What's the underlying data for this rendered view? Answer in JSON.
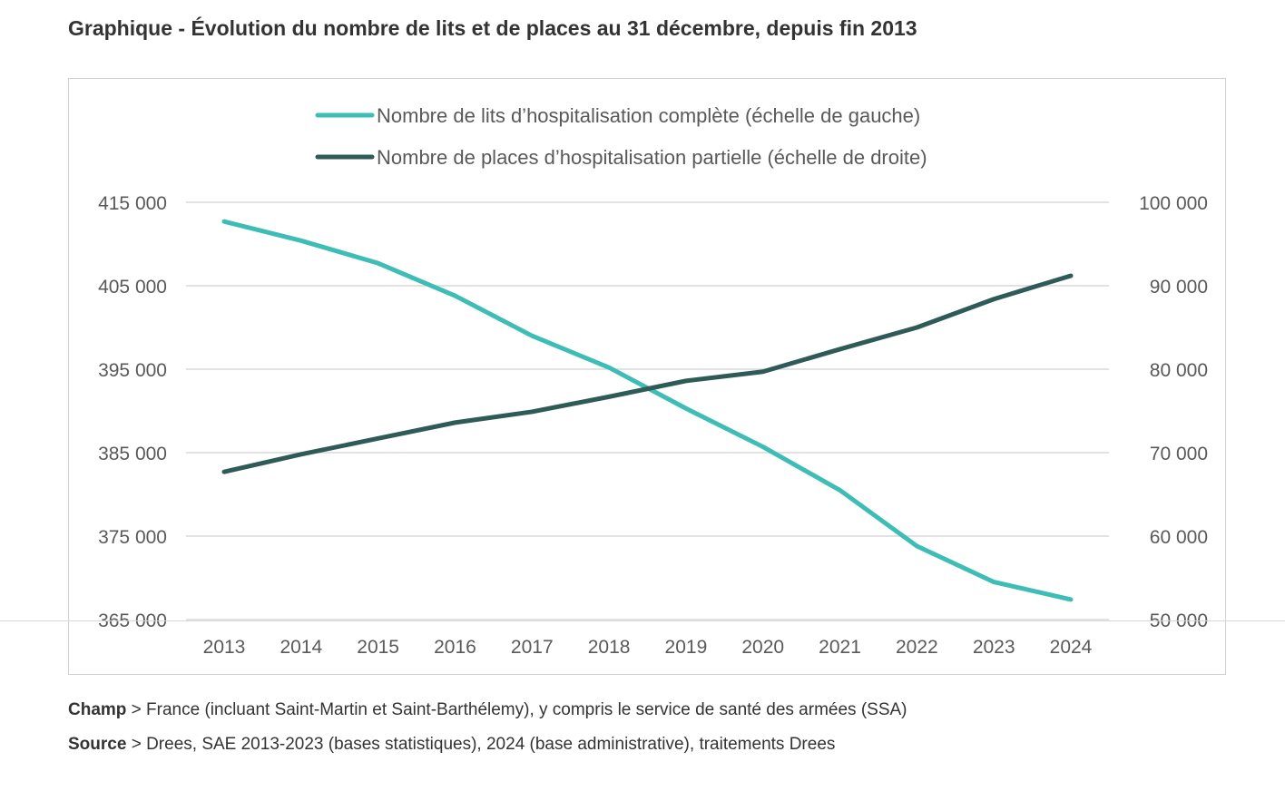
{
  "title": "Graphique - Évolution du nombre de lits et de places au 31 décembre, depuis fin 2013",
  "chart_data": {
    "type": "line",
    "title": "Graphique - Évolution du nombre de lits et de places au 31 décembre, depuis fin 2013",
    "categories": [
      "2013",
      "2014",
      "2015",
      "2016",
      "2017",
      "2018",
      "2019",
      "2020",
      "2021",
      "2022",
      "2023",
      "2024"
    ],
    "y_left": {
      "range": [
        365000,
        415000
      ],
      "ticks": [
        "415 000",
        "405 000",
        "395 000",
        "385 000",
        "375 000",
        "365 000"
      ],
      "tick_values": [
        415000,
        405000,
        395000,
        385000,
        375000,
        365000
      ]
    },
    "y_right": {
      "range": [
        50000,
        100000
      ],
      "ticks": [
        "100 000",
        "90 000",
        "80 000",
        "70 000",
        "60 000",
        "50 000"
      ],
      "tick_values": [
        100000,
        90000,
        80000,
        70000,
        60000,
        50000
      ]
    },
    "grid": true,
    "legend_position": "top-center",
    "series": [
      {
        "name": "Nombre de lits d’hospitalisation  complète (échelle de gauche)",
        "axis": "left",
        "color": "#3dbdb5",
        "values": [
          412700,
          410400,
          407700,
          403800,
          399000,
          395200,
          390300,
          385700,
          380500,
          373800,
          369500,
          367400
        ]
      },
      {
        "name": "Nombre de places d’hospitalisation  partielle  (échelle de droite)",
        "axis": "right",
        "color": "#2f5b57",
        "values": [
          67700,
          69800,
          71700,
          73600,
          74900,
          76700,
          78600,
          79700,
          82400,
          85000,
          88400,
          91200
        ]
      }
    ]
  },
  "notes": [
    {
      "label": "Champ",
      "text": " > France (incluant Saint-Martin et Saint-Barthélemy), y compris le service de santé des armées (SSA)"
    },
    {
      "label": "Source",
      "text": " > Drees, SAE 2013-2023 (bases statistiques), 2024 (base administrative), traitements Drees"
    }
  ]
}
